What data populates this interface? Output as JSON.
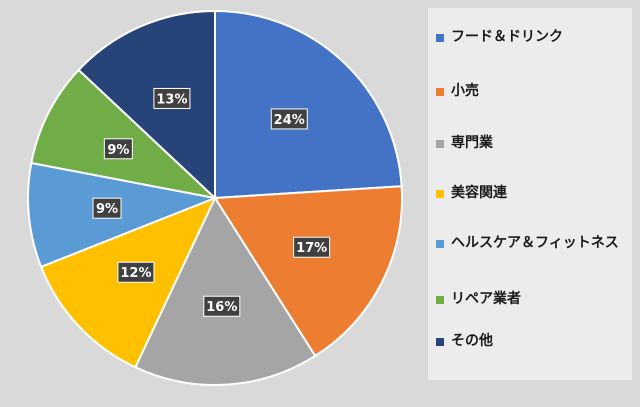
{
  "chart_data": {
    "type": "pie",
    "categories": [
      "フード＆ドリンク",
      "小売",
      "専門業",
      "美容関連",
      "ヘルスケア＆フィットネス",
      "リペア業者",
      "その他"
    ],
    "values": [
      24,
      17,
      16,
      12,
      9,
      9,
      13
    ],
    "data_labels": [
      "24%",
      "17%",
      "16%",
      "12%",
      "9%",
      "9%",
      "13%"
    ],
    "colors": [
      "#4472c4",
      "#ed7d31",
      "#a5a5a5",
      "#ffc000",
      "#5b9bd5",
      "#70ad47",
      "#264478"
    ],
    "start_angle": "12 o'clock",
    "direction": "clockwise",
    "legend_position": "right",
    "title": ""
  }
}
